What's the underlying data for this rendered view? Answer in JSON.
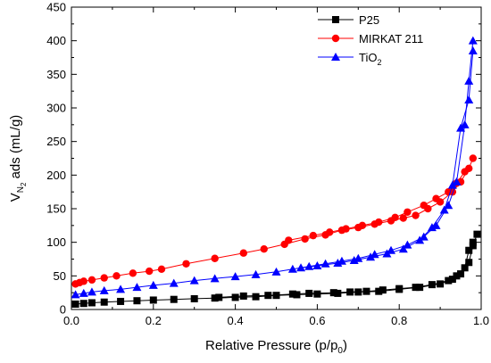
{
  "chart_data": {
    "type": "scatter",
    "xlabel": {
      "main": "Relative Pressure (p/p",
      "sub": "0",
      "tail": ")"
    },
    "ylabel": {
      "main": "V",
      "sub": "N",
      "subsub": "2",
      "tail": " ads (mL/g)"
    },
    "xlim": [
      0,
      1.0
    ],
    "ylim": [
      0,
      450
    ],
    "xticks": [
      0.0,
      0.2,
      0.4,
      0.6,
      0.8,
      1.0
    ],
    "xtick_labels": [
      "0.0",
      "0.2",
      "0.4",
      "0.6",
      "0.8",
      "1.0"
    ],
    "yticks": [
      0,
      50,
      100,
      150,
      200,
      250,
      300,
      350,
      400,
      450
    ],
    "ytick_labels": [
      "0",
      "50",
      "100",
      "150",
      "200",
      "250",
      "300",
      "350",
      "400",
      "450"
    ],
    "grid": false,
    "legend_position": "top-right",
    "series": [
      {
        "name": "P25",
        "color": "#000000",
        "marker": "square",
        "adsorption": [
          [
            0.01,
            8
          ],
          [
            0.03,
            9
          ],
          [
            0.05,
            10
          ],
          [
            0.08,
            11
          ],
          [
            0.12,
            12
          ],
          [
            0.16,
            13
          ],
          [
            0.2,
            14
          ],
          [
            0.25,
            15
          ],
          [
            0.3,
            16
          ],
          [
            0.35,
            17
          ],
          [
            0.4,
            18
          ],
          [
            0.45,
            19
          ],
          [
            0.5,
            21
          ],
          [
            0.55,
            22
          ],
          [
            0.6,
            23
          ],
          [
            0.65,
            24
          ],
          [
            0.7,
            26
          ],
          [
            0.75,
            27
          ],
          [
            0.8,
            30
          ],
          [
            0.85,
            33
          ],
          [
            0.9,
            38
          ],
          [
            0.93,
            45
          ],
          [
            0.95,
            53
          ],
          [
            0.97,
            70
          ],
          [
            0.98,
            95
          ],
          [
            0.99,
            112
          ]
        ],
        "desorption": [
          [
            0.98,
            100
          ],
          [
            0.97,
            88
          ],
          [
            0.96,
            62
          ],
          [
            0.94,
            50
          ],
          [
            0.92,
            43
          ],
          [
            0.88,
            37
          ],
          [
            0.84,
            33
          ],
          [
            0.8,
            31
          ],
          [
            0.76,
            29
          ],
          [
            0.72,
            27
          ],
          [
            0.68,
            26
          ],
          [
            0.64,
            25
          ],
          [
            0.58,
            24
          ],
          [
            0.54,
            23
          ],
          [
            0.48,
            21
          ],
          [
            0.42,
            20
          ],
          [
            0.36,
            18
          ]
        ]
      },
      {
        "name": "MIRKAT 211",
        "color": "#ff0000",
        "marker": "circle",
        "adsorption": [
          [
            0.01,
            38
          ],
          [
            0.02,
            40
          ],
          [
            0.03,
            42
          ],
          [
            0.05,
            44
          ],
          [
            0.08,
            47
          ],
          [
            0.11,
            50
          ],
          [
            0.15,
            54
          ],
          [
            0.19,
            57
          ],
          [
            0.22,
            60
          ],
          [
            0.28,
            68
          ],
          [
            0.35,
            76
          ],
          [
            0.42,
            84
          ],
          [
            0.47,
            90
          ],
          [
            0.52,
            97
          ],
          [
            0.57,
            105
          ],
          [
            0.62,
            111
          ],
          [
            0.66,
            118
          ],
          [
            0.7,
            122
          ],
          [
            0.74,
            127
          ],
          [
            0.78,
            132
          ],
          [
            0.81,
            136
          ],
          [
            0.84,
            140
          ],
          [
            0.87,
            150
          ],
          [
            0.9,
            160
          ],
          [
            0.93,
            175
          ],
          [
            0.95,
            190
          ],
          [
            0.97,
            210
          ],
          [
            0.98,
            225
          ]
        ],
        "desorption": [
          [
            0.96,
            205
          ],
          [
            0.94,
            188
          ],
          [
            0.92,
            175
          ],
          [
            0.89,
            165
          ],
          [
            0.86,
            155
          ],
          [
            0.82,
            145
          ],
          [
            0.79,
            137
          ],
          [
            0.75,
            130
          ],
          [
            0.71,
            125
          ],
          [
            0.67,
            120
          ],
          [
            0.63,
            115
          ],
          [
            0.59,
            110
          ],
          [
            0.53,
            103
          ]
        ]
      },
      {
        "name": "TiO2",
        "legend_label": {
          "main": "TiO",
          "sub": "2"
        },
        "color": "#0000ff",
        "marker": "triangle",
        "adsorption": [
          [
            0.01,
            22
          ],
          [
            0.03,
            24
          ],
          [
            0.05,
            26
          ],
          [
            0.08,
            28
          ],
          [
            0.12,
            30
          ],
          [
            0.16,
            33
          ],
          [
            0.2,
            36
          ],
          [
            0.25,
            39
          ],
          [
            0.3,
            43
          ],
          [
            0.35,
            46
          ],
          [
            0.4,
            49
          ],
          [
            0.45,
            52
          ],
          [
            0.5,
            56
          ],
          [
            0.54,
            60
          ],
          [
            0.58,
            64
          ],
          [
            0.62,
            68
          ],
          [
            0.66,
            72
          ],
          [
            0.7,
            76
          ],
          [
            0.74,
            82
          ],
          [
            0.78,
            88
          ],
          [
            0.82,
            96
          ],
          [
            0.86,
            108
          ],
          [
            0.89,
            125
          ],
          [
            0.92,
            155
          ],
          [
            0.94,
            190
          ],
          [
            0.96,
            275
          ],
          [
            0.97,
            340
          ],
          [
            0.98,
            400
          ]
        ],
        "desorption": [
          [
            0.98,
            385
          ],
          [
            0.97,
            312
          ],
          [
            0.95,
            270
          ],
          [
            0.93,
            185
          ],
          [
            0.91,
            148
          ],
          [
            0.88,
            122
          ],
          [
            0.85,
            103
          ],
          [
            0.81,
            90
          ],
          [
            0.77,
            83
          ],
          [
            0.73,
            78
          ],
          [
            0.69,
            73
          ],
          [
            0.65,
            69
          ],
          [
            0.6,
            65
          ],
          [
            0.56,
            62
          ]
        ]
      }
    ]
  }
}
